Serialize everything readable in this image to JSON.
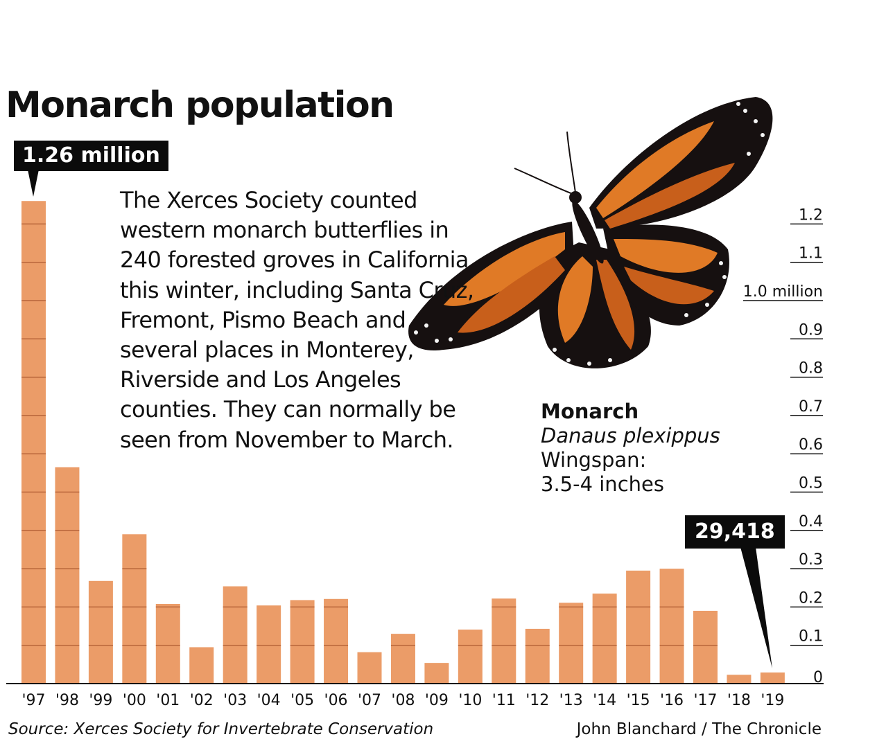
{
  "title": "Monarch population",
  "description": "The Xerces Society counted western monarch butterflies in 240 forested groves in California this winter, including Santa Cruz, Fremont, Pismo Beach and several places in Monterey, Riverside and Los Angeles counties. They can normally be seen from November to March.",
  "callouts": {
    "peak": "1.26 million",
    "latest": "29,418"
  },
  "species": {
    "name": "Monarch",
    "scientific": "Danaus plexippus",
    "wingspan_label": "Wingspan:",
    "wingspan_value": "3.5-4 inches"
  },
  "source": "Source: Xerces Society for Invertebrate Conservation",
  "credit": "John Blanchard / The Chronicle",
  "colors": {
    "bar": "#eb9c68",
    "bar_line": "#b8653a",
    "text": "#111111",
    "callout_bg": "#0b0b0b"
  },
  "image": "monarch-butterfly-photo",
  "chart_data": {
    "type": "bar",
    "title": "Monarch population",
    "categories": [
      "'97",
      "'98",
      "'99",
      "'00",
      "'01",
      "'02",
      "'03",
      "'04",
      "'05",
      "'06",
      "'07",
      "'08",
      "'09",
      "'10",
      "'11",
      "'12",
      "'13",
      "'14",
      "'15",
      "'16",
      "'17",
      "'18",
      "'19"
    ],
    "values": [
      1.26,
      0.565,
      0.268,
      0.39,
      0.208,
      0.095,
      0.254,
      0.204,
      0.218,
      0.221,
      0.082,
      0.13,
      0.054,
      0.141,
      0.222,
      0.143,
      0.211,
      0.235,
      0.295,
      0.3,
      0.19,
      0.023,
      0.029
    ],
    "ylim": [
      0,
      1.26
    ],
    "yticks": [
      {
        "value": 1.2,
        "label": "1.2"
      },
      {
        "value": 1.1,
        "label": "1.1"
      },
      {
        "value": 1.0,
        "label": "1.0 million"
      },
      {
        "value": 0.9,
        "label": "0.9"
      },
      {
        "value": 0.8,
        "label": "0.8"
      },
      {
        "value": 0.7,
        "label": "0.7"
      },
      {
        "value": 0.6,
        "label": "0.6"
      },
      {
        "value": 0.5,
        "label": "0.5"
      },
      {
        "value": 0.4,
        "label": "0.4"
      },
      {
        "value": 0.3,
        "label": "0.3"
      },
      {
        "value": 0.2,
        "label": "0.2"
      },
      {
        "value": 0.1,
        "label": "0.1"
      },
      {
        "value": 0,
        "label": "0"
      }
    ],
    "y_axis_side": "right",
    "grid": true,
    "xlabel": "",
    "ylabel": ""
  }
}
